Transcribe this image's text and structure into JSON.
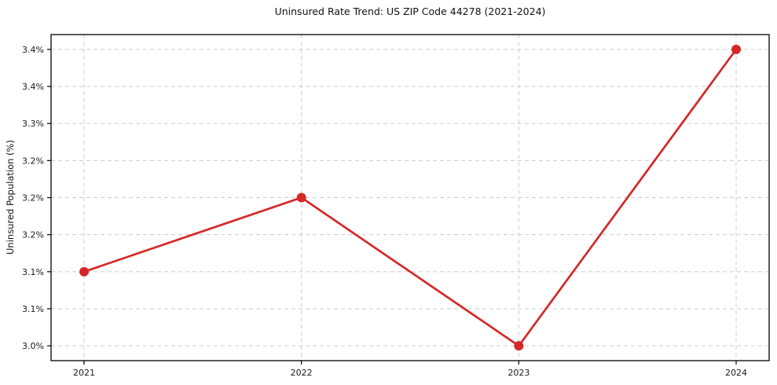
{
  "chart_data": {
    "type": "line",
    "title": "Uninsured Rate Trend: US ZIP Code 44278 (2021-2024)",
    "xlabel": "",
    "ylabel": "Uninsured Population (%)",
    "categories": [
      "2021",
      "2022",
      "2023",
      "2024"
    ],
    "values": [
      3.1,
      3.2,
      3.0,
      3.4
    ],
    "value_unit": "%",
    "ylim": [
      2.98,
      3.42
    ],
    "yticks": [
      3.0,
      3.05,
      3.1,
      3.15,
      3.2,
      3.25,
      3.3,
      3.35,
      3.4
    ],
    "ytick_labels": [
      "3.0%",
      "3.1%",
      "3.1%",
      "3.2%",
      "3.2%",
      "3.2%",
      "3.3%",
      "3.4%",
      "3.4%"
    ],
    "grid": true,
    "grid_style": "dashed",
    "legend": false,
    "line_color": "#d62728",
    "marker": "circle",
    "grid_color": "#cccccc",
    "axis_color": "#000000"
  }
}
